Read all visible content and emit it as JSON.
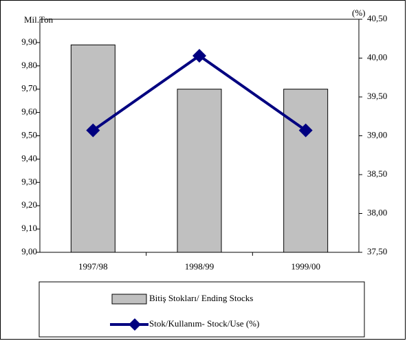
{
  "chart_data": {
    "type": "bar_line",
    "y_label": "Mil.Ton",
    "y2_label": "(%)",
    "categories": [
      "1997/98",
      "1998/99",
      "1999/00"
    ],
    "series": [
      {
        "name": "Bitiş Stokları/ Ending Stocks",
        "type": "bar",
        "color": "#c0c0c0",
        "values": [
          9.89,
          9.7,
          9.7
        ]
      },
      {
        "name": "Stok/Kullanım- Stock/Use (%)",
        "type": "line",
        "axis": "y2",
        "color": "#000080",
        "values": [
          39.07,
          40.03,
          39.07
        ]
      }
    ],
    "ylim": [
      9.0,
      10.0
    ],
    "yticks": [
      {
        "value": 9.0,
        "label": "9,00"
      },
      {
        "value": 9.1,
        "label": "9,10"
      },
      {
        "value": 9.2,
        "label": "9,20"
      },
      {
        "value": 9.3,
        "label": "9,30"
      },
      {
        "value": 9.4,
        "label": "9,40"
      },
      {
        "value": 9.5,
        "label": "9,50"
      },
      {
        "value": 9.6,
        "label": "9,60"
      },
      {
        "value": 9.7,
        "label": "9,70"
      },
      {
        "value": 9.8,
        "label": "9,80"
      },
      {
        "value": 9.9,
        "label": "9,90"
      }
    ],
    "y2lim": [
      37.5,
      40.5
    ],
    "y2ticks": [
      {
        "value": 37.5,
        "label": "37,50"
      },
      {
        "value": 38.0,
        "label": "38,00"
      },
      {
        "value": 38.5,
        "label": "38,50"
      },
      {
        "value": 39.0,
        "label": "39,00"
      },
      {
        "value": 39.5,
        "label": "39,50"
      },
      {
        "value": 40.0,
        "label": "40,00"
      },
      {
        "value": 40.5,
        "label": "40,50"
      }
    ],
    "legend": "bottom"
  }
}
